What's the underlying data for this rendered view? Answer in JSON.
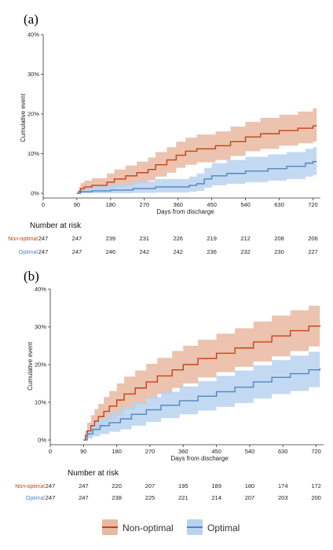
{
  "colors": {
    "non_optimal_line": "#c84216",
    "non_optimal_band": "#e8b9a0",
    "optimal_line": "#4f86c6",
    "optimal_band": "#b9d2ee"
  },
  "legend": [
    "Non-optimal",
    "Optimal"
  ],
  "chart_data": [
    {
      "type": "line",
      "panel_label": "(a)",
      "xlabel": "Days from discharge",
      "ylabel": "Cumulative event",
      "xticks": [
        0,
        90,
        180,
        270,
        360,
        450,
        540,
        630,
        720
      ],
      "yticks": [
        "0%",
        "10%",
        "20%",
        "30%",
        "40%"
      ],
      "xlim": [
        0,
        740
      ],
      "ylim": [
        0,
        40
      ],
      "risk_table_title": "Number at risk",
      "series": [
        {
          "name": "Non-optimal",
          "points": [
            [
              90,
              0
            ],
            [
              95,
              0.5
            ],
            [
              100,
              1.2
            ],
            [
              110,
              1.6
            ],
            [
              130,
              2.0
            ],
            [
              170,
              2.8
            ],
            [
              190,
              3.6
            ],
            [
              220,
              4.4
            ],
            [
              250,
              5.2
            ],
            [
              280,
              6.0
            ],
            [
              300,
              7.2
            ],
            [
              330,
              8.4
            ],
            [
              355,
              9.6
            ],
            [
              380,
              10.6
            ],
            [
              410,
              11.2
            ],
            [
              460,
              12.0
            ],
            [
              500,
              13.0
            ],
            [
              540,
              14.2
            ],
            [
              580,
              15.0
            ],
            [
              630,
              15.8
            ],
            [
              680,
              16.4
            ],
            [
              720,
              17.0
            ],
            [
              730,
              17.0
            ]
          ],
          "ci_upper": [
            [
              90,
              0
            ],
            [
              95,
              1.5
            ],
            [
              100,
              2.6
            ],
            [
              110,
              3.2
            ],
            [
              130,
              3.8
            ],
            [
              170,
              5.0
            ],
            [
              190,
              6.0
            ],
            [
              220,
              7.0
            ],
            [
              250,
              8.0
            ],
            [
              280,
              9.0
            ],
            [
              300,
              10.4
            ],
            [
              330,
              11.6
            ],
            [
              355,
              13.0
            ],
            [
              380,
              14.0
            ],
            [
              410,
              14.8
            ],
            [
              460,
              15.6
            ],
            [
              500,
              16.8
            ],
            [
              540,
              18.0
            ],
            [
              580,
              19.0
            ],
            [
              630,
              19.8
            ],
            [
              680,
              20.6
            ],
            [
              720,
              21.4
            ],
            [
              730,
              21.4
            ]
          ],
          "ci_lower": [
            [
              90,
              0
            ],
            [
              95,
              0
            ],
            [
              100,
              0.1
            ],
            [
              110,
              0.3
            ],
            [
              130,
              0.5
            ],
            [
              170,
              0.9
            ],
            [
              190,
              1.4
            ],
            [
              220,
              2.0
            ],
            [
              250,
              2.6
            ],
            [
              280,
              3.2
            ],
            [
              300,
              4.2
            ],
            [
              330,
              5.2
            ],
            [
              355,
              6.4
            ],
            [
              380,
              7.2
            ],
            [
              410,
              7.8
            ],
            [
              460,
              8.4
            ],
            [
              500,
              9.4
            ],
            [
              540,
              10.6
            ],
            [
              580,
              11.2
            ],
            [
              630,
              12.0
            ],
            [
              680,
              12.6
            ],
            [
              720,
              13.0
            ],
            [
              730,
              13.0
            ]
          ],
          "at_risk": [
            247,
            247,
            239,
            231,
            226,
            219,
            212,
            208,
            206
          ]
        },
        {
          "name": "Optimal",
          "points": [
            [
              90,
              0
            ],
            [
              100,
              0.4
            ],
            [
              130,
              0.6
            ],
            [
              180,
              0.8
            ],
            [
              240,
              1.2
            ],
            [
              300,
              1.6
            ],
            [
              390,
              2.0
            ],
            [
              410,
              2.4
            ],
            [
              430,
              3.6
            ],
            [
              450,
              4.4
            ],
            [
              490,
              5.0
            ],
            [
              540,
              5.6
            ],
            [
              600,
              6.2
            ],
            [
              650,
              6.8
            ],
            [
              700,
              7.6
            ],
            [
              720,
              8.0
            ],
            [
              730,
              8.0
            ]
          ],
          "ci_upper": [
            [
              90,
              0
            ],
            [
              100,
              1.2
            ],
            [
              130,
              1.8
            ],
            [
              180,
              2.2
            ],
            [
              240,
              3.0
            ],
            [
              300,
              3.6
            ],
            [
              390,
              4.2
            ],
            [
              410,
              5.0
            ],
            [
              430,
              6.4
            ],
            [
              450,
              7.6
            ],
            [
              490,
              8.4
            ],
            [
              540,
              9.2
            ],
            [
              600,
              9.8
            ],
            [
              650,
              10.4
            ],
            [
              700,
              11.2
            ],
            [
              720,
              11.6
            ],
            [
              730,
              11.6
            ]
          ],
          "ci_lower": [
            [
              90,
              0
            ],
            [
              100,
              0
            ],
            [
              130,
              0
            ],
            [
              180,
              0
            ],
            [
              240,
              0.1
            ],
            [
              300,
              0.2
            ],
            [
              390,
              0.4
            ],
            [
              410,
              0.6
            ],
            [
              430,
              1.4
            ],
            [
              450,
              2.0
            ],
            [
              490,
              2.4
            ],
            [
              540,
              2.8
            ],
            [
              600,
              3.2
            ],
            [
              650,
              3.6
            ],
            [
              700,
              4.2
            ],
            [
              720,
              4.6
            ],
            [
              730,
              4.6
            ]
          ],
          "at_risk": [
            247,
            247,
            246,
            242,
            242,
            236,
            232,
            230,
            227
          ]
        }
      ]
    },
    {
      "type": "line",
      "panel_label": "(b)",
      "xlabel": "Days from discharge",
      "ylabel": "Cumulative event",
      "xticks": [
        0,
        90,
        180,
        270,
        360,
        450,
        540,
        630,
        720
      ],
      "yticks": [
        "0%",
        "10%",
        "20%",
        "30%",
        "40%"
      ],
      "xlim": [
        0,
        740
      ],
      "ylim": [
        0,
        40
      ],
      "risk_table_title": "Number at risk",
      "series": [
        {
          "name": "Non-optimal",
          "points": [
            [
              90,
              0
            ],
            [
              95,
              1.2
            ],
            [
              100,
              2.4
            ],
            [
              110,
              3.8
            ],
            [
              120,
              5.0
            ],
            [
              130,
              6.2
            ],
            [
              145,
              7.6
            ],
            [
              160,
              9.0
            ],
            [
              180,
              10.6
            ],
            [
              200,
              12.2
            ],
            [
              230,
              13.8
            ],
            [
              260,
              15.4
            ],
            [
              290,
              17.0
            ],
            [
              330,
              18.6
            ],
            [
              360,
              20.0
            ],
            [
              400,
              21.6
            ],
            [
              450,
              23.0
            ],
            [
              500,
              24.4
            ],
            [
              550,
              26.0
            ],
            [
              600,
              27.6
            ],
            [
              650,
              29.0
            ],
            [
              700,
              30.2
            ],
            [
              730,
              30.4
            ]
          ],
          "ci_upper": [
            [
              90,
              0
            ],
            [
              95,
              2.6
            ],
            [
              100,
              4.6
            ],
            [
              110,
              6.6
            ],
            [
              120,
              8.2
            ],
            [
              130,
              9.6
            ],
            [
              145,
              11.4
            ],
            [
              160,
              13.0
            ],
            [
              180,
              15.0
            ],
            [
              200,
              16.8
            ],
            [
              230,
              18.4
            ],
            [
              260,
              20.2
            ],
            [
              290,
              21.8
            ],
            [
              330,
              23.6
            ],
            [
              360,
              25.0
            ],
            [
              400,
              26.6
            ],
            [
              450,
              28.2
            ],
            [
              500,
              29.6
            ],
            [
              550,
              31.4
            ],
            [
              600,
              33.0
            ],
            [
              650,
              34.4
            ],
            [
              700,
              35.6
            ],
            [
              730,
              35.8
            ]
          ],
          "ci_lower": [
            [
              90,
              0
            ],
            [
              95,
              0.2
            ],
            [
              100,
              0.8
            ],
            [
              110,
              1.6
            ],
            [
              120,
              2.4
            ],
            [
              130,
              3.2
            ],
            [
              145,
              4.2
            ],
            [
              160,
              5.4
            ],
            [
              180,
              6.6
            ],
            [
              200,
              8.0
            ],
            [
              230,
              9.4
            ],
            [
              260,
              10.8
            ],
            [
              290,
              12.2
            ],
            [
              330,
              13.8
            ],
            [
              360,
              15.0
            ],
            [
              400,
              16.6
            ],
            [
              450,
              18.0
            ],
            [
              500,
              19.4
            ],
            [
              550,
              20.8
            ],
            [
              600,
              22.2
            ],
            [
              650,
              23.6
            ],
            [
              700,
              24.8
            ],
            [
              730,
              25.0
            ]
          ],
          "at_risk": [
            247,
            247,
            220,
            207,
            195,
            189,
            180,
            174,
            172
          ]
        },
        {
          "name": "Optimal",
          "points": [
            [
              90,
              0
            ],
            [
              100,
              1.6
            ],
            [
              115,
              2.8
            ],
            [
              135,
              3.8
            ],
            [
              160,
              4.6
            ],
            [
              190,
              5.6
            ],
            [
              220,
              6.8
            ],
            [
              260,
              8.0
            ],
            [
              300,
              9.2
            ],
            [
              350,
              10.4
            ],
            [
              400,
              11.6
            ],
            [
              450,
              12.8
            ],
            [
              500,
              14.0
            ],
            [
              550,
              15.4
            ],
            [
              600,
              16.6
            ],
            [
              650,
              17.6
            ],
            [
              700,
              18.6
            ],
            [
              730,
              19.0
            ]
          ],
          "ci_upper": [
            [
              90,
              0
            ],
            [
              100,
              3.2
            ],
            [
              115,
              4.8
            ],
            [
              135,
              6.2
            ],
            [
              160,
              7.4
            ],
            [
              190,
              8.6
            ],
            [
              220,
              10.0
            ],
            [
              260,
              11.4
            ],
            [
              300,
              12.8
            ],
            [
              350,
              14.2
            ],
            [
              400,
              15.6
            ],
            [
              450,
              17.0
            ],
            [
              500,
              18.4
            ],
            [
              550,
              19.8
            ],
            [
              600,
              21.2
            ],
            [
              650,
              22.4
            ],
            [
              700,
              23.4
            ],
            [
              730,
              23.8
            ]
          ],
          "ci_lower": [
            [
              90,
              0
            ],
            [
              100,
              0.4
            ],
            [
              115,
              1.0
            ],
            [
              135,
              1.6
            ],
            [
              160,
              2.2
            ],
            [
              190,
              2.8
            ],
            [
              220,
              3.8
            ],
            [
              260,
              4.8
            ],
            [
              300,
              5.8
            ],
            [
              350,
              6.8
            ],
            [
              400,
              7.8
            ],
            [
              450,
              8.8
            ],
            [
              500,
              9.8
            ],
            [
              550,
              11.0
            ],
            [
              600,
              12.2
            ],
            [
              650,
              13.0
            ],
            [
              700,
              14.0
            ],
            [
              730,
              14.4
            ]
          ],
          "at_risk": [
            247,
            247,
            238,
            225,
            221,
            214,
            207,
            203,
            200
          ]
        }
      ]
    }
  ]
}
